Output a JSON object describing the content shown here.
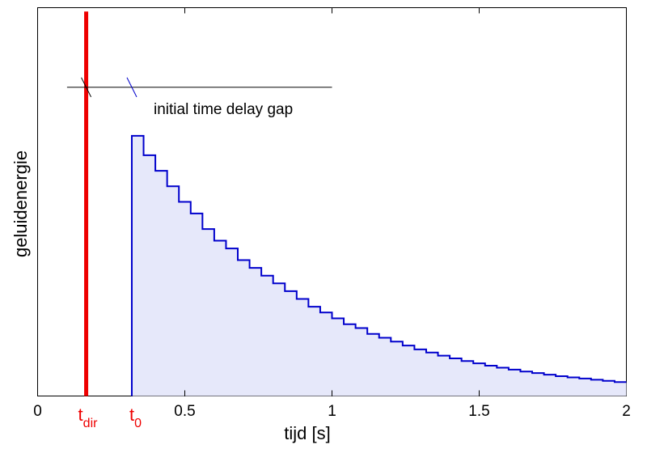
{
  "chart_data": {
    "type": "area",
    "xlabel": "tijd  [s]",
    "ylabel": "geluidenergie",
    "xlim": [
      0,
      2
    ],
    "ylim": [
      0,
      1
    ],
    "xticks": [
      {
        "value": 0,
        "label": "0"
      },
      {
        "value": 0.5,
        "label": "0.5"
      },
      {
        "value": 1,
        "label": "1"
      },
      {
        "value": 1.5,
        "label": "1.5"
      },
      {
        "value": 2,
        "label": "2"
      }
    ],
    "grid": false,
    "direct_sound": {
      "x": 0.165,
      "y_top": 0.99,
      "color": "#ee0000"
    },
    "reflections": {
      "color": "#0000cc",
      "fill": "#e6e8fa",
      "step_start_x": [
        0.32,
        0.36,
        0.4,
        0.44,
        0.48,
        0.52,
        0.56,
        0.6,
        0.64,
        0.68,
        0.72,
        0.76,
        0.8,
        0.84,
        0.88,
        0.92,
        0.96,
        1.0,
        1.04,
        1.08,
        1.12,
        1.16,
        1.2,
        1.24,
        1.28,
        1.32,
        1.36,
        1.4,
        1.44,
        1.48,
        1.52,
        1.56,
        1.6,
        1.64,
        1.68,
        1.72,
        1.76,
        1.8,
        1.84,
        1.88,
        1.92,
        1.96
      ],
      "step_values": [
        0.67,
        0.62,
        0.58,
        0.54,
        0.5,
        0.47,
        0.43,
        0.4,
        0.38,
        0.35,
        0.33,
        0.31,
        0.29,
        0.27,
        0.25,
        0.23,
        0.215,
        0.2,
        0.185,
        0.175,
        0.16,
        0.15,
        0.14,
        0.13,
        0.12,
        0.112,
        0.104,
        0.097,
        0.09,
        0.084,
        0.078,
        0.073,
        0.068,
        0.063,
        0.059,
        0.055,
        0.051,
        0.048,
        0.045,
        0.042,
        0.039,
        0.036
      ],
      "end_x": 2
    },
    "annotations": {
      "gap_text": "initial time delay gap",
      "gap_line": {
        "x_start": 0.1,
        "x_end": 1.0,
        "y": 0.795
      },
      "tick_marks_x": [
        0.165,
        0.32
      ],
      "t_dir_main": "t",
      "t_dir_sub": "dir",
      "t0_main": "t",
      "t0_sub": "0",
      "label_color": "#ee0000"
    }
  }
}
